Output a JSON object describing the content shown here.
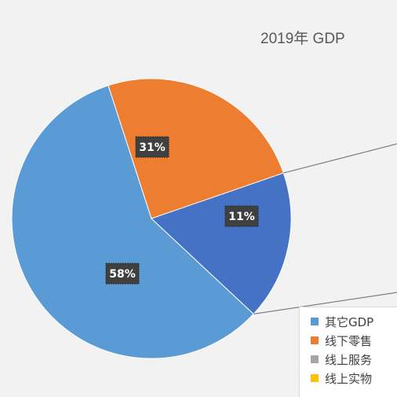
{
  "chart_data": {
    "type": "pie",
    "title": "2019年 GDP",
    "categories": [
      "其它GDP",
      "线下零售",
      "线上服务",
      "线上实物"
    ],
    "values": [
      58,
      31,
      11,
      0
    ],
    "labels": [
      "58%",
      "31%",
      "11%",
      ""
    ],
    "colors": [
      "#5b9bd5",
      "#ed7d31",
      "#4472c4",
      "#ffc000"
    ],
    "legend_colors": [
      "#5b9bd5",
      "#ed7d31",
      "#a5a5a5",
      "#ffc000"
    ],
    "legend_position": "bottom-right"
  }
}
